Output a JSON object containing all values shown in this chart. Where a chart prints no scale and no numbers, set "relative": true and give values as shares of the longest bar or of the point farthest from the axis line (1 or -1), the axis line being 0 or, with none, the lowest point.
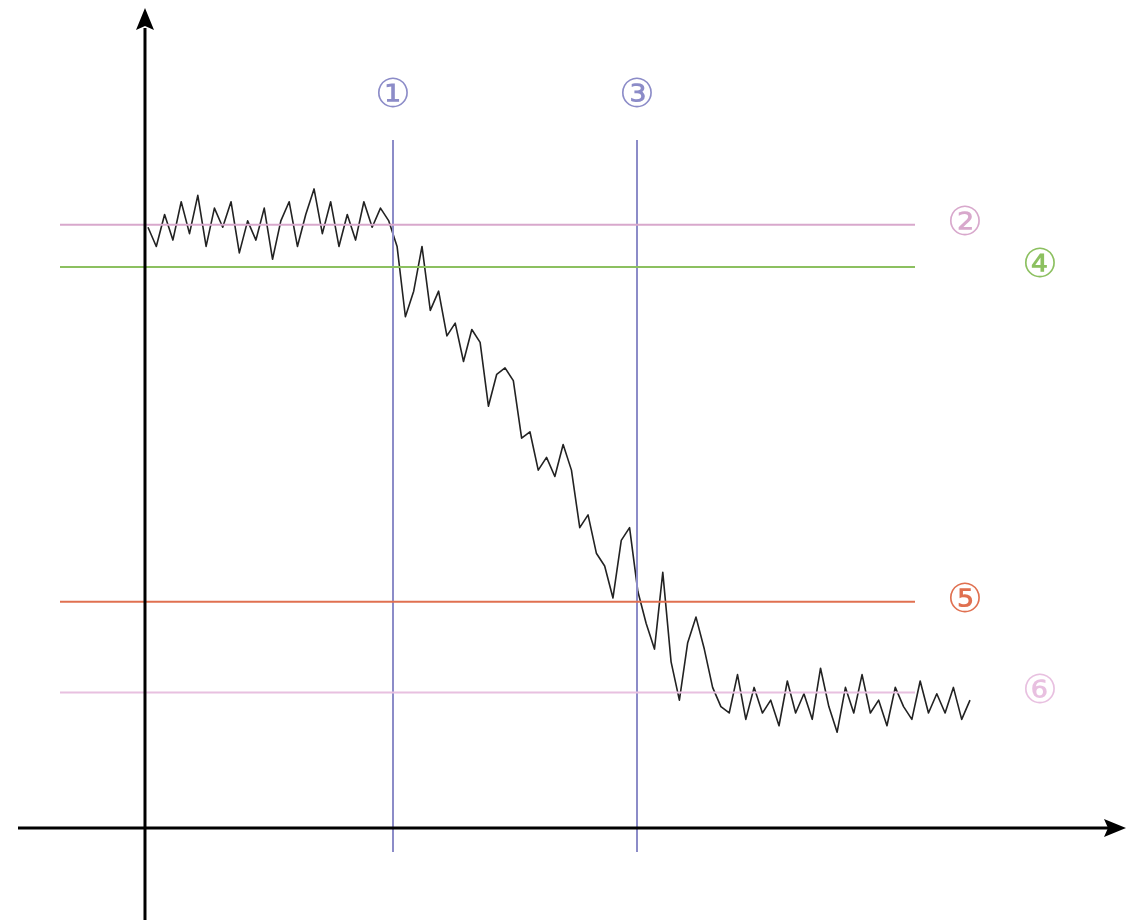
{
  "chart_data": {
    "type": "line",
    "relative": true,
    "grid": false,
    "legend": false,
    "tick_labels": false,
    "marker": "none",
    "line_style": "solid",
    "categories": [
      null,
      null,
      null,
      null,
      null,
      null,
      null,
      null,
      null,
      null,
      null,
      null,
      null,
      null,
      null,
      null,
      null,
      null,
      null,
      null,
      null,
      null,
      null,
      null,
      null,
      null,
      null,
      null,
      null,
      null,
      null,
      null,
      null,
      null,
      null,
      null,
      null,
      null,
      null,
      null,
      null,
      null,
      null,
      null,
      null,
      null,
      null,
      null,
      null,
      null,
      null,
      null,
      null,
      null,
      null,
      null,
      null,
      null,
      null,
      null,
      null,
      null,
      null,
      null,
      null,
      null,
      null,
      null,
      null,
      null,
      null,
      null,
      null,
      null,
      null,
      null,
      null,
      null,
      null,
      null,
      null,
      null,
      null,
      null,
      null,
      null,
      null,
      null,
      null,
      null,
      null,
      null,
      null,
      null,
      null,
      null,
      null,
      null,
      null,
      null
    ],
    "annotations": [
      "①",
      "③"
    ],
    "series": [
      {
        "color": "#222222",
        "values": [
          0.94,
          0.91,
          0.96,
          0.92,
          0.98,
          0.93,
          0.99,
          0.91,
          0.97,
          0.94,
          0.98,
          0.9,
          0.95,
          0.92,
          0.97,
          0.89,
          0.95,
          0.98,
          0.91,
          0.96,
          1,
          0.93,
          0.98,
          0.91,
          0.96,
          0.92,
          0.98,
          0.94,
          0.97,
          0.95,
          0.91,
          0.8,
          0.84,
          0.91,
          0.81,
          0.84,
          0.77,
          0.79,
          0.73,
          0.78,
          0.76,
          0.66,
          0.71,
          0.72,
          0.7,
          0.61,
          0.62,
          0.56,
          0.58,
          0.55,
          0.6,
          0.56,
          0.47,
          0.49,
          0.43,
          0.41,
          0.36,
          0.45,
          0.47,
          0.37,
          0.32,
          0.28,
          0.4,
          0.26,
          0.2,
          0.29,
          0.33,
          0.28,
          0.22,
          0.19,
          0.18,
          0.24,
          0.17,
          0.22,
          0.18,
          0.2,
          0.16,
          0.23,
          0.18,
          0.21,
          0.17,
          0.25,
          0.19,
          0.15,
          0.22,
          0.18,
          0.24,
          0.18,
          0.2,
          0.16,
          0.22,
          0.19,
          0.17,
          0.23,
          0.18,
          0.21,
          0.18,
          0.22,
          0.17,
          0.2
        ]
      }
    ],
    "ref_lines": [
      {
        "axis": "y",
        "value": 0.944,
        "label": "②",
        "color": "#d8a8cc"
      },
      {
        "axis": "y",
        "value": 0.878,
        "label": "④",
        "color": "#8cc060"
      },
      {
        "axis": "y",
        "value": 0.354,
        "label": "⑤",
        "color": "#e07050"
      },
      {
        "axis": "y",
        "value": 0.212,
        "label": "⑥",
        "color": "#e8c0e0"
      }
    ]
  }
}
